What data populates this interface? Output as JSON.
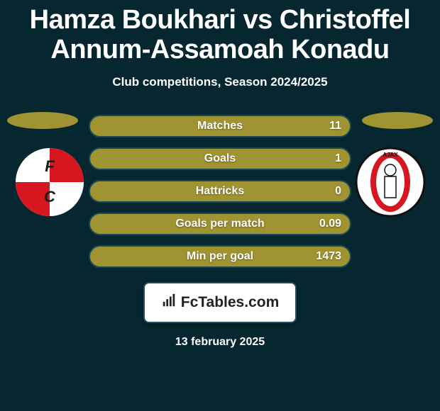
{
  "title": "Hamza Boukhari vs Christoffel Annum-Assamoah Konadu",
  "title_fontsize": 38,
  "subtitle": "Club competitions, Season 2024/2025",
  "background_color": "#062630",
  "bar_fill": "#a09332",
  "bar_border": "#1a4a56",
  "ellipse_color": "#a09332",
  "stats": [
    {
      "label": "Matches",
      "value": "11"
    },
    {
      "label": "Goals",
      "value": "1"
    },
    {
      "label": "Hattricks",
      "value": "0"
    },
    {
      "label": "Goals per match",
      "value": "0.09"
    },
    {
      "label": "Min per goal",
      "value": "1473"
    }
  ],
  "brand": {
    "label": "FcTables.com"
  },
  "date": "13 february 2025",
  "clubs": {
    "left": {
      "name": "FC Utrecht",
      "colors": {
        "a": "#ffffff",
        "b": "#d7171f"
      }
    },
    "right": {
      "name": "Ajax",
      "colors": {
        "a": "#ffffff",
        "b": "#d7171f"
      }
    }
  }
}
